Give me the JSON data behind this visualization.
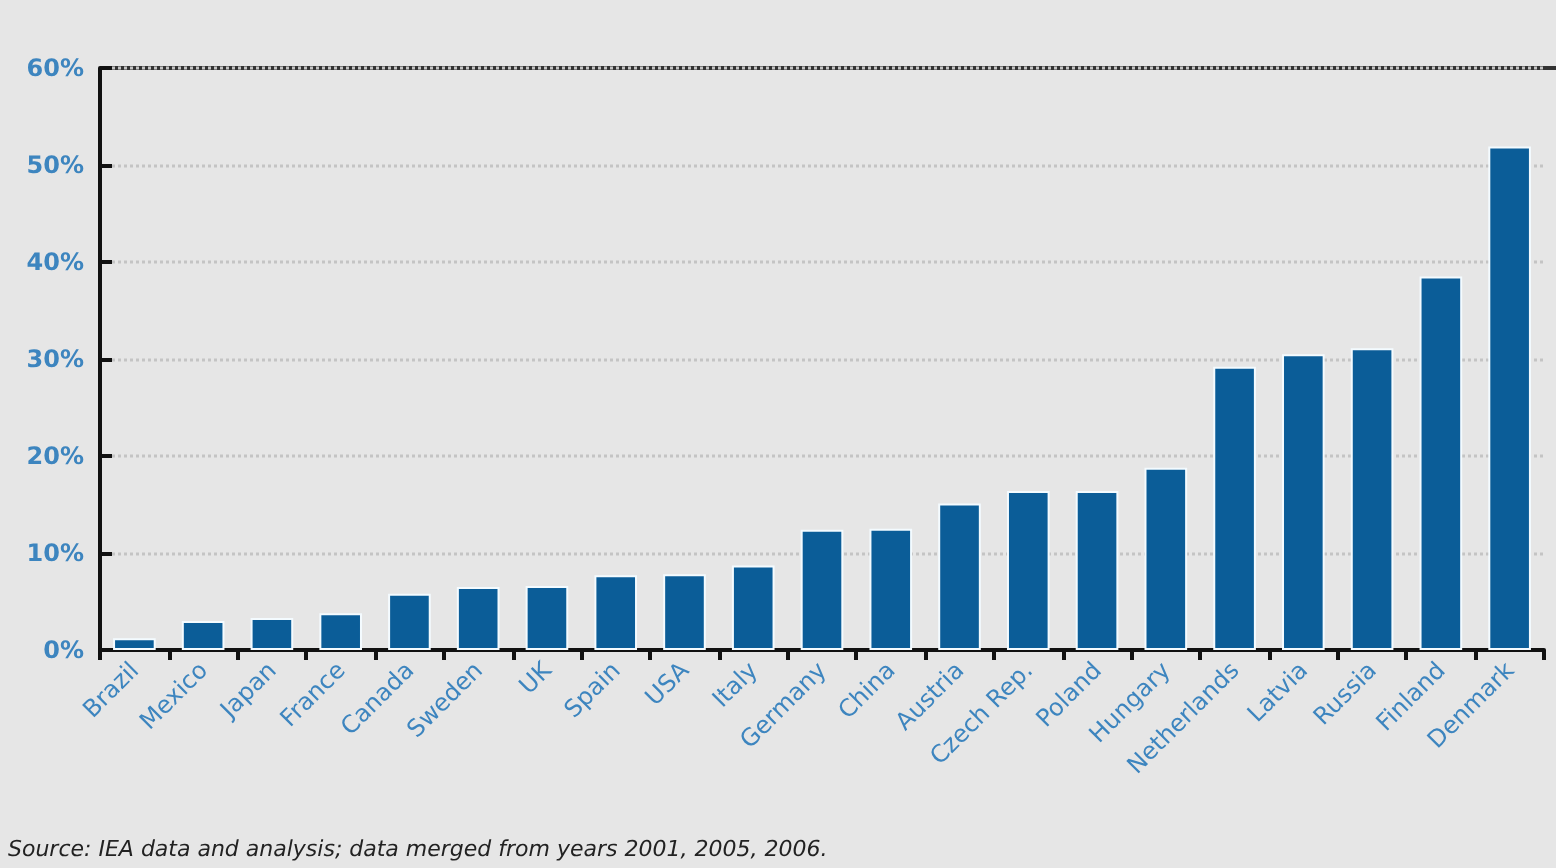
{
  "chart_data": {
    "type": "bar",
    "categories": [
      "Brazil",
      "Mexico",
      "Japan",
      "France",
      "Canada",
      "Sweden",
      "UK",
      "Spain",
      "USA",
      "Italy",
      "Germany",
      "China",
      "Austria",
      "Czech Rep.",
      "Poland",
      "Hungary",
      "Netherlands",
      "Latvia",
      "Russia",
      "Finland",
      "Denmark"
    ],
    "values": [
      1.2,
      3.0,
      3.3,
      3.8,
      5.8,
      6.5,
      6.6,
      7.7,
      7.8,
      8.7,
      12.4,
      12.5,
      15.1,
      16.4,
      16.4,
      18.8,
      29.2,
      30.5,
      31.1,
      38.5,
      51.9
    ],
    "color": "#0b5d98",
    "ylim": [
      0,
      60
    ],
    "yticks": [
      {
        "value": 0,
        "label": "0%"
      },
      {
        "value": 10,
        "label": "10%"
      },
      {
        "value": 20,
        "label": "20%"
      },
      {
        "value": 30,
        "label": "30%"
      },
      {
        "value": 40,
        "label": "40%"
      },
      {
        "value": 50,
        "label": "50%"
      },
      {
        "value": 60,
        "label": "60%"
      }
    ],
    "grid": "y",
    "annotations": [
      "Source: IEA data and analysis; data merged from years 2001, 2005, 2006."
    ]
  }
}
